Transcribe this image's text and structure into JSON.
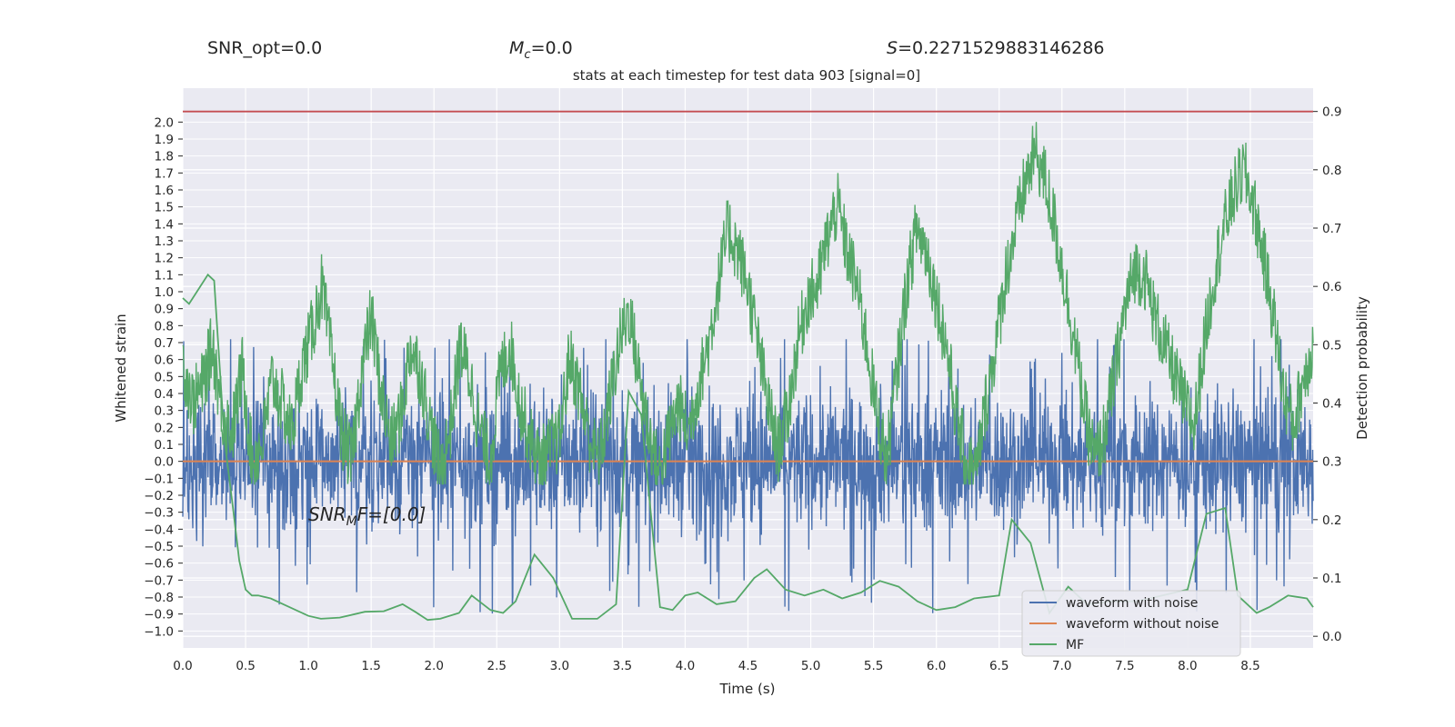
{
  "header": {
    "snr_opt": "SNR_opt=0.0",
    "mc_sym": "M",
    "mc_sub": "c",
    "mc_val": "=0.0",
    "s_sym": "S",
    "s_val": "=0.2271529883146286"
  },
  "annotation": {
    "main": "SNR",
    "sub": "M",
    "rest": "F=[0.0]"
  },
  "chart_data": {
    "type": "line",
    "title": "stats at each timestep for test data 903 [signal=0]",
    "xlabel": "Time (s)",
    "ylabel_left": "Whitened strain",
    "ylabel_right": "Detection probability",
    "xlim": [
      0.0,
      9.0
    ],
    "ylim_left": [
      -1.1,
      2.2
    ],
    "ylim_right": [
      -0.02,
      0.94
    ],
    "xticks": [
      "0.0",
      "0.5",
      "1.0",
      "1.5",
      "2.0",
      "2.5",
      "3.0",
      "3.5",
      "4.0",
      "4.5",
      "5.0",
      "5.5",
      "6.0",
      "6.5",
      "7.0",
      "7.5",
      "8.0",
      "8.5"
    ],
    "yticks_left": [
      "2.0",
      "1.9",
      "1.8",
      "1.7",
      "1.6",
      "1.5",
      "1.4",
      "1.3",
      "1.2",
      "1.1",
      "1.0",
      "0.9",
      "0.8",
      "0.7",
      "0.6",
      "0.5",
      "0.4",
      "0.3",
      "0.2",
      "0.1",
      "0.0",
      "−0.1",
      "−0.2",
      "−0.3",
      "−0.4",
      "−0.5",
      "−0.6",
      "−0.7",
      "−0.8",
      "−0.9",
      "−1.0"
    ],
    "yticks_right": [
      "0.9",
      "0.8",
      "0.7",
      "0.6",
      "0.5",
      "0.4",
      "0.3",
      "0.2",
      "0.1",
      "0.0"
    ],
    "threshold": 0.9,
    "grid": true,
    "legend_position": "bottom-right",
    "colors": {
      "noise": "#4c72b0",
      "clean": "#dd8452",
      "mf": "#55a868",
      "threshold": "#c44e52",
      "plot_bg": "#eaeaf2",
      "grid": "#ffffff"
    },
    "series": [
      {
        "name": "waveform with noise",
        "axis": "left",
        "description_values": "noise band, typical amplitude ±0.3 with spikes up to ±0.9",
        "envelope": [
          0.55,
          0.9
        ]
      },
      {
        "name": "waveform without noise",
        "axis": "left",
        "x": [
          0.0,
          9.0
        ],
        "y": [
          0.0,
          0.0
        ]
      },
      {
        "name": "MF",
        "axis": "right",
        "x": [
          0.0,
          0.05,
          0.2,
          0.25,
          0.33,
          0.4,
          0.45,
          0.5,
          0.55,
          0.6,
          0.7,
          0.8,
          1.0,
          1.1,
          1.25,
          1.45,
          1.6,
          1.75,
          1.85,
          1.95,
          2.05,
          2.2,
          2.3,
          2.45,
          2.55,
          2.65,
          2.8,
          2.95,
          3.1,
          3.3,
          3.45,
          3.55,
          3.65,
          3.8,
          3.9,
          4.0,
          4.1,
          4.25,
          4.4,
          4.55,
          4.65,
          4.8,
          4.95,
          5.1,
          5.25,
          5.4,
          5.55,
          5.7,
          5.85,
          6.0,
          6.15,
          6.3,
          6.5,
          6.6,
          6.75,
          6.9,
          7.05,
          7.2,
          7.4,
          7.6,
          7.8,
          8.0,
          8.15,
          8.3,
          8.4,
          8.55,
          8.65,
          8.8,
          8.95,
          9.0
        ],
        "y": [
          0.58,
          0.57,
          0.62,
          0.61,
          0.34,
          0.22,
          0.13,
          0.08,
          0.07,
          0.07,
          0.065,
          0.055,
          0.035,
          0.03,
          0.032,
          0.042,
          0.043,
          0.055,
          0.042,
          0.028,
          0.03,
          0.04,
          0.07,
          0.045,
          0.04,
          0.06,
          0.14,
          0.1,
          0.03,
          0.03,
          0.055,
          0.42,
          0.38,
          0.05,
          0.045,
          0.07,
          0.075,
          0.055,
          0.06,
          0.1,
          0.115,
          0.08,
          0.07,
          0.08,
          0.065,
          0.075,
          0.095,
          0.085,
          0.06,
          0.045,
          0.05,
          0.065,
          0.07,
          0.2,
          0.16,
          0.04,
          0.085,
          0.055,
          0.06,
          0.06,
          0.07,
          0.08,
          0.21,
          0.22,
          0.07,
          0.04,
          0.05,
          0.07,
          0.065,
          0.05
        ],
        "noisy_segment_values": [
          0.47,
          0.4,
          0.43,
          0.5,
          0.38,
          0.35,
          0.46,
          0.3,
          0.33,
          0.44,
          0.4,
          0.35,
          0.46,
          0.52,
          0.6,
          0.48,
          0.35,
          0.3,
          0.45,
          0.55,
          0.42,
          0.33,
          0.38,
          0.5,
          0.45,
          0.36,
          0.28,
          0.36,
          0.5,
          0.44,
          0.35,
          0.3,
          0.45,
          0.5,
          0.4,
          0.34,
          0.3,
          0.32,
          0.34,
          0.48,
          0.42,
          0.34,
          0.3,
          0.4,
          0.5,
          0.56,
          0.45,
          0.35,
          0.28,
          0.34,
          0.4,
          0.35,
          0.43,
          0.5,
          0.6,
          0.7,
          0.66,
          0.6,
          0.5,
          0.4,
          0.32,
          0.38,
          0.5,
          0.58,
          0.6,
          0.68,
          0.74,
          0.66,
          0.6,
          0.5,
          0.38,
          0.3,
          0.45,
          0.6,
          0.7,
          0.66,
          0.58,
          0.5,
          0.38,
          0.3,
          0.28,
          0.4,
          0.5,
          0.62,
          0.7,
          0.78,
          0.83,
          0.78,
          0.7,
          0.6,
          0.5,
          0.38,
          0.3,
          0.35,
          0.45,
          0.56,
          0.63,
          0.62,
          0.55,
          0.5,
          0.45,
          0.4,
          0.36,
          0.5,
          0.62,
          0.7,
          0.76,
          0.8,
          0.74,
          0.65,
          0.55,
          0.42,
          0.36,
          0.44,
          0.5
        ]
      }
    ]
  }
}
